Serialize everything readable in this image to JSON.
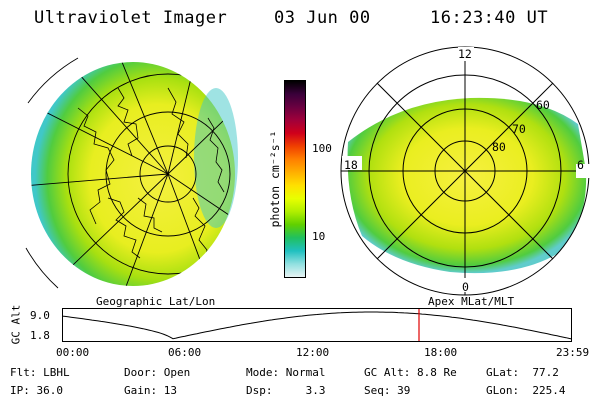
{
  "header": {
    "instrument": "Ultraviolet Imager",
    "date": "03 Jun 00",
    "time": "16:23:40 UT"
  },
  "left_panel": {
    "label": "Geographic Lat/Lon"
  },
  "right_panel": {
    "label": "Apex MLat/MLT",
    "mlt_labels": {
      "top": "12",
      "right": "6",
      "bottom": "0",
      "left": "18"
    },
    "mlat_labels": [
      "60",
      "70",
      "80"
    ]
  },
  "colorbar": {
    "unit_label": "photon cm⁻²s⁻¹",
    "ticks": [
      "100",
      "10"
    ],
    "colors": [
      "#000000",
      "#3a003a",
      "#6a0040",
      "#a0003a",
      "#d0001a",
      "#f04000",
      "#ff8000",
      "#ffb000",
      "#ffe000",
      "#e8ff00",
      "#b0ee00",
      "#60d000",
      "#20c060",
      "#20c0c0",
      "#90e0e0",
      "#e8f4f4"
    ]
  },
  "timeline": {
    "ylabel": "GC Alt",
    "yticks": [
      "9.0",
      "1.8"
    ],
    "xticks": [
      "00:00",
      "06:00",
      "12:00",
      "18:00",
      "23:59"
    ],
    "marker_fraction": 0.7
  },
  "info": {
    "row1": [
      {
        "label": "Flt:",
        "value": "LBHL"
      },
      {
        "label": "Door:",
        "value": "Open"
      },
      {
        "label": "Mode:",
        "value": "Normal"
      },
      {
        "label": "GC Alt:",
        "value": "8.8 Re"
      },
      {
        "label": "GLat:",
        "value": "77.2"
      }
    ],
    "row2": [
      {
        "label": "IP:",
        "value": "36.0"
      },
      {
        "label": "Gain:",
        "value": "13"
      },
      {
        "label": "Dsp:",
        "value": "3.3"
      },
      {
        "label": "Seq:",
        "value": "39"
      },
      {
        "label": "GLon:",
        "value": "225.4"
      }
    ]
  }
}
